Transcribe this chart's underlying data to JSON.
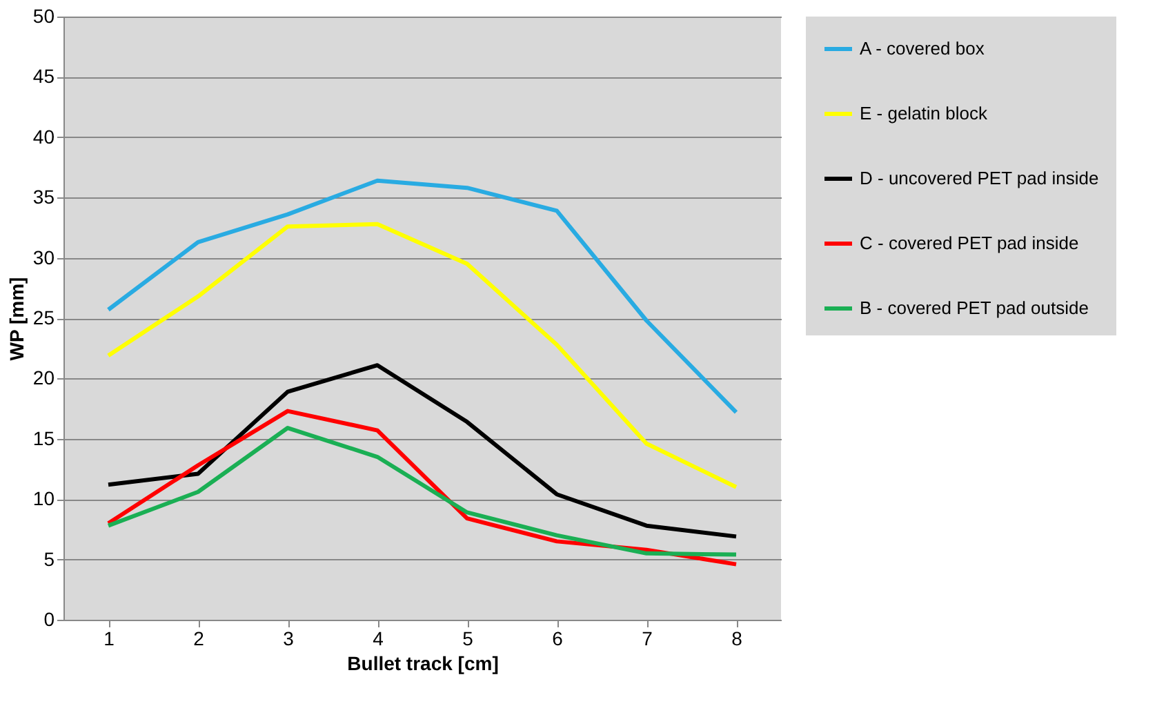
{
  "chart_data": {
    "type": "line",
    "xlabel": "Bullet track [cm]",
    "ylabel": "WP [mm]",
    "categories": [
      "1",
      "2",
      "3",
      "4",
      "5",
      "6",
      "7",
      "8"
    ],
    "ylim": [
      0,
      50
    ],
    "yticks": [
      0,
      5,
      10,
      15,
      20,
      25,
      30,
      35,
      40,
      45,
      50
    ],
    "grid": "y",
    "legend": "right",
    "marker": "none",
    "line_style": "solid",
    "series": [
      {
        "name": "A - covered box",
        "color": "#29abe2",
        "values": [
          25.7,
          31.3,
          33.6,
          36.4,
          35.8,
          33.9,
          24.8,
          17.2
        ]
      },
      {
        "name": "E - gelatin block",
        "color": "#ffff00",
        "values": [
          21.9,
          26.8,
          32.6,
          32.8,
          29.5,
          22.8,
          14.6,
          11.0
        ]
      },
      {
        "name": "D - uncovered PET pad inside",
        "color": "#000000",
        "values": [
          11.2,
          12.1,
          18.9,
          21.1,
          16.4,
          10.4,
          7.8,
          6.9
        ]
      },
      {
        "name": "C - covered PET pad inside",
        "color": "#ff0000",
        "values": [
          8.0,
          12.8,
          17.3,
          15.7,
          8.4,
          6.5,
          5.8,
          4.6
        ]
      },
      {
        "name": "B - covered PET pad outside",
        "color": "#1aaf54",
        "values": [
          7.8,
          10.6,
          15.9,
          13.5,
          8.9,
          7.0,
          5.5,
          5.4
        ]
      }
    ]
  }
}
